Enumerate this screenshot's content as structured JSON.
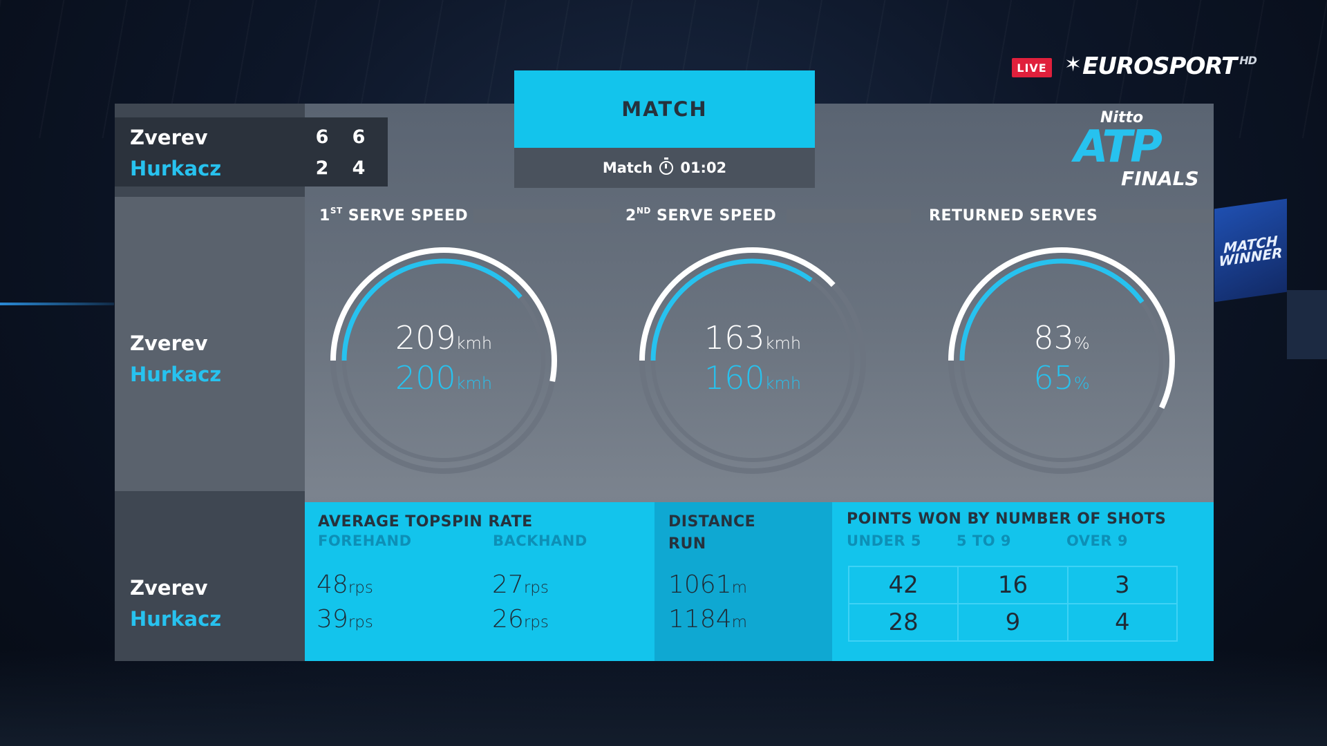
{
  "broadcast": {
    "live_label": "LIVE",
    "channel": "EUROSPORT",
    "channel_suffix": "HD"
  },
  "event_logo": {
    "line1": "Nitto",
    "line2": "ATP",
    "line3": "FINALS"
  },
  "background_screen_text": "MATCH WINNER",
  "header": {
    "title": "MATCH",
    "subtitle_label": "Match",
    "duration": "01:02"
  },
  "scoreboard": {
    "players": [
      {
        "name": "Zverev",
        "sets": [
          "6",
          "6"
        ]
      },
      {
        "name": "Hurkacz",
        "sets": [
          "2",
          "4"
        ]
      }
    ]
  },
  "players": {
    "p1": "Zverev",
    "p2": "Hurkacz"
  },
  "stats": [
    {
      "title_main": "1",
      "title_sup": "ST",
      "title_rest": " SERVE SPEED",
      "p1_value": "209",
      "p1_unit": "kmh",
      "p2_value": "200",
      "p2_unit": "kmh",
      "p1_fraction": 0.53,
      "p2_fraction": 0.39
    },
    {
      "title_main": "2",
      "title_sup": "ND",
      "title_rest": " SERVE SPEED",
      "p1_value": "163",
      "p1_unit": "kmh",
      "p2_value": "160",
      "p2_unit": "kmh",
      "p1_fraction": 0.38,
      "p2_fraction": 0.35
    },
    {
      "title_main": "",
      "title_sup": "",
      "title_rest": "RETURNED SERVES",
      "p1_value": "83",
      "p1_unit": "%",
      "p2_value": "65",
      "p2_unit": "%",
      "p1_fraction": 0.57,
      "p2_fraction": 0.4
    }
  ],
  "bottom": {
    "topspin": {
      "title": "AVERAGE TOPSPIN RATE",
      "forehand_label": "FOREHAND",
      "backhand_label": "BACKHAND",
      "p1_forehand": "48",
      "p2_forehand": "39",
      "p1_backhand": "27",
      "p2_backhand": "26",
      "unit": "rps"
    },
    "distance": {
      "title_line1": "DISTANCE",
      "title_line2": "RUN",
      "p1": "1061",
      "p2": "1184",
      "unit": "m"
    },
    "points": {
      "title": "POINTS WON BY NUMBER OF SHOTS",
      "columns": [
        "UNDER 5",
        "5 TO 9",
        "OVER 9"
      ],
      "p1": [
        "42",
        "16",
        "3"
      ],
      "p2": [
        "28",
        "9",
        "4"
      ]
    }
  },
  "colors": {
    "accent": "#13c4ec",
    "p2_color": "#27c2ef",
    "live_red": "#e0203c"
  }
}
